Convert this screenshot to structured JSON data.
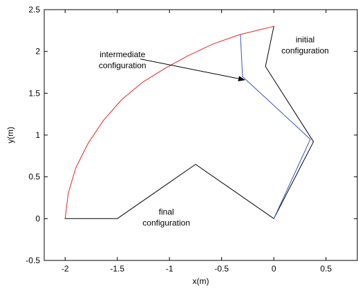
{
  "chart_data": {
    "type": "line",
    "title": "",
    "xlabel": "x(m)",
    "ylabel": "y(m)",
    "xlim": [
      -2.2,
      0.8
    ],
    "ylim": [
      -0.5,
      2.5
    ],
    "xticks": [
      -2,
      -1.5,
      -1,
      -0.5,
      0,
      0.5
    ],
    "xtick_labels": [
      "-2",
      "-1.5",
      "-1",
      "-0.5",
      "0",
      "0.5"
    ],
    "yticks": [
      -0.5,
      0,
      0.5,
      1,
      1.5,
      2,
      2.5
    ],
    "ytick_labels": [
      "-0.5",
      "0",
      "0.5",
      "1",
      "1.5",
      "2",
      "2.5"
    ],
    "grid": false,
    "series": [
      {
        "color": "#e8231f",
        "x": [
          -2.0,
          -1.97,
          -1.9,
          -1.78,
          -1.63,
          -1.46,
          -1.26,
          -1.04,
          -0.82,
          -0.58,
          -0.33,
          -0.1,
          0.0
        ],
        "y": [
          0.0,
          0.3,
          0.6,
          0.9,
          1.18,
          1.42,
          1.63,
          1.8,
          1.95,
          2.09,
          2.2,
          2.27,
          2.3
        ]
      },
      {
        "color": "#000000",
        "x": [
          -2.0,
          -1.5,
          -0.75,
          0.0,
          0.38,
          -0.08,
          0.0
        ],
        "y": [
          0.0,
          0.0,
          0.65,
          0.0,
          0.92,
          1.82,
          2.3
        ]
      },
      {
        "color": "#2f55c4",
        "x": [
          0.0,
          0.35,
          -0.3,
          -0.32
        ],
        "y": [
          0.0,
          0.95,
          1.7,
          2.2
        ]
      }
    ],
    "annotations": [
      {
        "lines": [
          "intermediate",
          "configuration"
        ],
        "x": -1.45,
        "y": 1.93
      },
      {
        "lines": [
          "initial",
          "configuration"
        ],
        "x": 0.3,
        "y": 2.11
      },
      {
        "lines": [
          "final",
          "configuration"
        ],
        "x": -1.03,
        "y": 0.05
      }
    ],
    "arrow": {
      "from": [
        -1.28,
        1.91
      ],
      "to": [
        -0.28,
        1.66
      ]
    }
  }
}
